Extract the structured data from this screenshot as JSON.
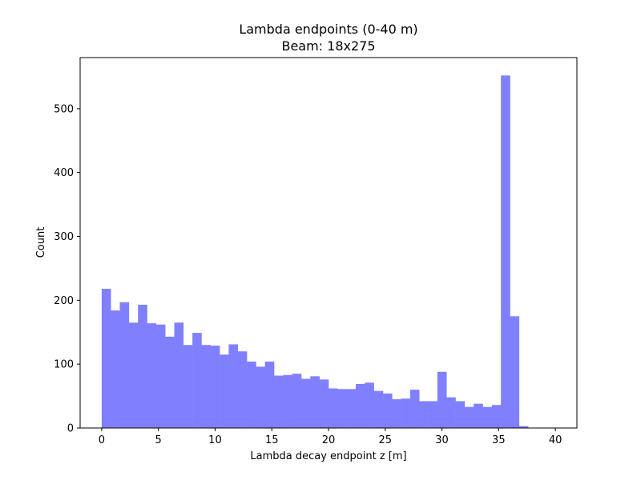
{
  "chart_data": {
    "type": "bar",
    "title": "Lambda endpoints (0-40 m)",
    "subtitle": "Beam: 18x275",
    "xlabel": "Lambda decay endpoint z [m]",
    "ylabel": "Count",
    "xlim": [
      -1.9,
      41.9
    ],
    "ylim": [
      0,
      580
    ],
    "xticks": [
      0,
      5,
      10,
      15,
      20,
      25,
      30,
      35,
      40
    ],
    "yticks": [
      0,
      100,
      200,
      300,
      400,
      500
    ],
    "bin_width": 0.8,
    "bin_start": 0,
    "values": [
      218,
      184,
      197,
      165,
      193,
      164,
      162,
      143,
      165,
      130,
      149,
      130,
      129,
      115,
      131,
      120,
      104,
      96,
      104,
      82,
      83,
      85,
      77,
      81,
      76,
      62,
      61,
      61,
      69,
      71,
      58,
      54,
      45,
      46,
      60,
      42,
      42,
      88,
      48,
      42,
      33,
      38,
      33,
      36,
      552,
      175,
      3,
      0,
      0,
      0
    ],
    "bar_color": "#8080ff",
    "grid": false,
    "legend": "none"
  }
}
